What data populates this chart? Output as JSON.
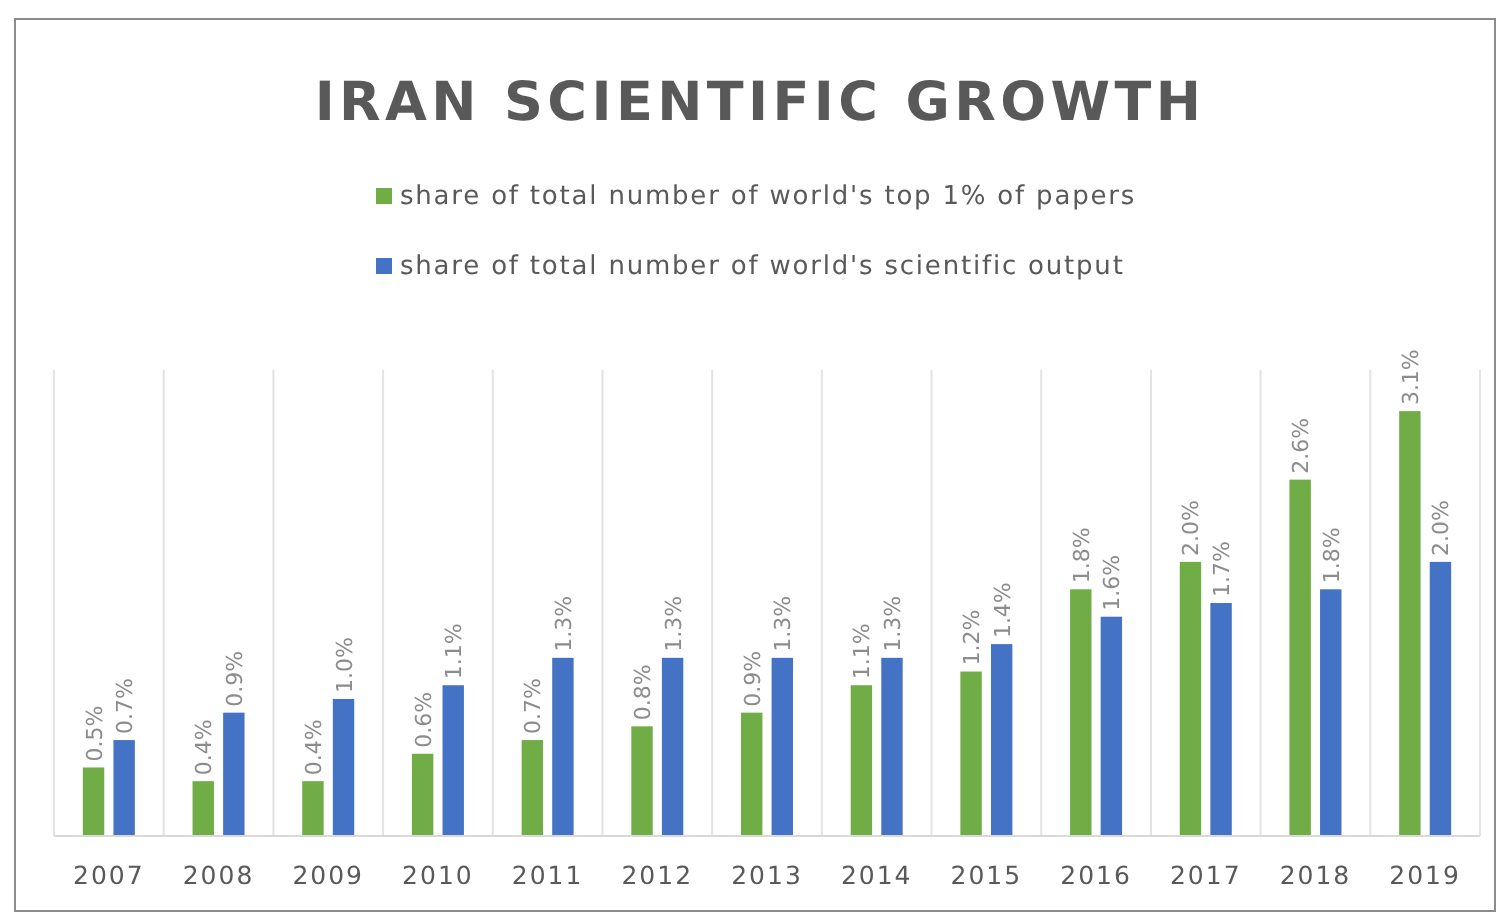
{
  "chart_data": {
    "type": "bar",
    "title": "IRAN SCIENTIFIC GROWTH",
    "categories": [
      "2007",
      "2008",
      "2009",
      "2010",
      "2011",
      "2012",
      "2013",
      "2014",
      "2015",
      "2016",
      "2017",
      "2018",
      "2019"
    ],
    "series": [
      {
        "name": "share of total number of world's top 1% of papers",
        "color": "#70ad47",
        "values": [
          0.5,
          0.4,
          0.4,
          0.6,
          0.7,
          0.8,
          0.9,
          1.1,
          1.2,
          1.8,
          2.0,
          2.6,
          3.1
        ],
        "value_labels": [
          "0.5%",
          "0.4%",
          "0.4%",
          "0.6%",
          "0.7%",
          "0.8%",
          "0.9%",
          "1.1%",
          "1.2%",
          "1.8%",
          "2.0%",
          "2.6%",
          "3.1%"
        ]
      },
      {
        "name": "share of total number of world's scientific output",
        "color": "#4472c4",
        "values": [
          0.7,
          0.9,
          1.0,
          1.1,
          1.3,
          1.3,
          1.3,
          1.3,
          1.4,
          1.6,
          1.7,
          1.8,
          2.0
        ],
        "value_labels": [
          "0.7%",
          "0.9%",
          "1.0%",
          "1.1%",
          "1.3%",
          "1.3%",
          "1.3%",
          "1.3%",
          "1.4%",
          "1.6%",
          "1.7%",
          "1.8%",
          "2.0%"
        ]
      }
    ],
    "ylim": [
      0,
      3.4
    ],
    "grid": "x",
    "legend": "top",
    "tick_labels": "x"
  }
}
